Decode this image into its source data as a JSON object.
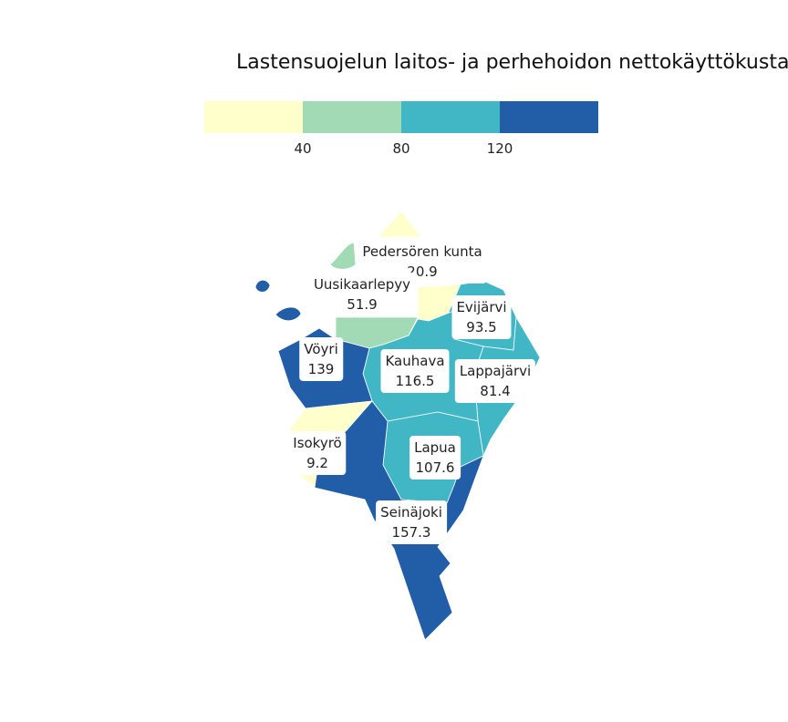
{
  "title": "Lastensuojelun laitos- ja perhehoidon nettokäyttökustann",
  "legend": {
    "bins": [
      {
        "color": "#ffffcc"
      },
      {
        "color": "#a1dab4"
      },
      {
        "color": "#41b6c4"
      },
      {
        "color": "#225ea8"
      }
    ],
    "ticks": [
      "40",
      "80",
      "120"
    ]
  },
  "regions": [
    {
      "name": "Pedersören kunta",
      "value": "20.9",
      "color": "#ffffcc"
    },
    {
      "name": "Uusikaarlepyy",
      "value": "51.9",
      "color": "#a1dab4"
    },
    {
      "name": "Evijärvi",
      "value": "93.5",
      "color": "#41b6c4"
    },
    {
      "name": "Vöyri",
      "value": "139",
      "color": "#225ea8"
    },
    {
      "name": "Kauhava",
      "value": "116.5",
      "color": "#41b6c4"
    },
    {
      "name": "Lappajärvi",
      "value": "81.4",
      "color": "#41b6c4"
    },
    {
      "name": "Isokyrö",
      "value": "9.2",
      "color": "#ffffcc"
    },
    {
      "name": "Lapua",
      "value": "107.6",
      "color": "#41b6c4"
    },
    {
      "name": "Seinäjoki",
      "value": "157.3",
      "color": "#225ea8"
    }
  ]
}
